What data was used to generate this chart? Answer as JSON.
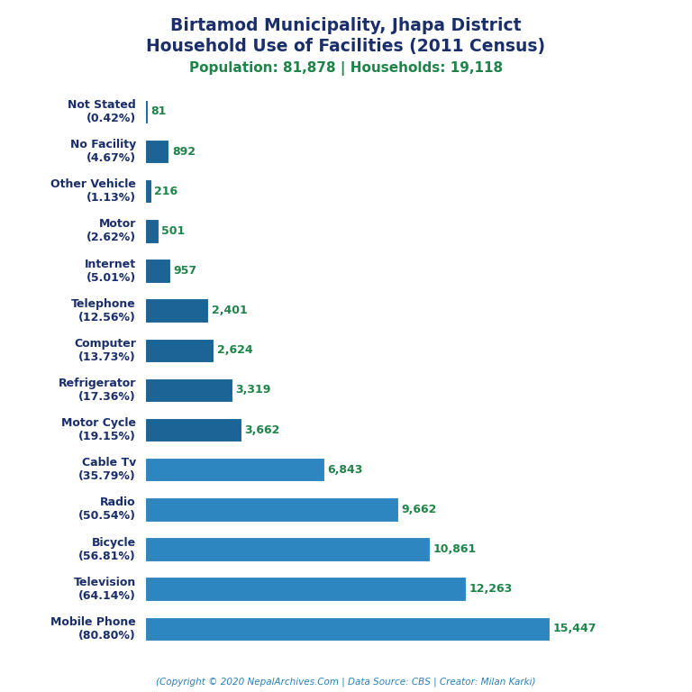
{
  "title_line1": "Birtamod Municipality, Jhapa District",
  "title_line2": "Household Use of Facilities (2011 Census)",
  "subtitle": "Population: 81,878 | Households: 19,118",
  "footer": "(Copyright © 2020 NepalArchives.Com | Data Source: CBS | Creator: Milan Karki)",
  "categories": [
    "Not Stated\n(0.42%)",
    "No Facility\n(4.67%)",
    "Other Vehicle\n(1.13%)",
    "Motor\n(2.62%)",
    "Internet\n(5.01%)",
    "Telephone\n(12.56%)",
    "Computer\n(13.73%)",
    "Refrigerator\n(17.36%)",
    "Motor Cycle\n(19.15%)",
    "Cable Tv\n(35.79%)",
    "Radio\n(50.54%)",
    "Bicycle\n(56.81%)",
    "Television\n(64.14%)",
    "Mobile Phone\n(80.80%)"
  ],
  "values": [
    81,
    892,
    216,
    501,
    957,
    2401,
    2624,
    3319,
    3662,
    6843,
    9662,
    10861,
    12263,
    15447
  ],
  "value_labels": [
    "81",
    "892",
    "216",
    "501",
    "957",
    "2,401",
    "2,624",
    "3,319",
    "3,662",
    "6,843",
    "9,662",
    "10,861",
    "12,263",
    "15,447"
  ],
  "bar_colors": [
    "#1a6496",
    "#1a6496",
    "#1a6496",
    "#1a6496",
    "#1a6496",
    "#1a6496",
    "#1a6496",
    "#1a6496",
    "#1a6496",
    "#2e86c1",
    "#2e86c1",
    "#2e86c1",
    "#2e86c1",
    "#2e86c1"
  ],
  "title_color": "#1a2e6b",
  "subtitle_color": "#1e8449",
  "value_color": "#1e8449",
  "footer_color": "#2980b9",
  "background_color": "#ffffff",
  "figsize": [
    7.68,
    7.68
  ],
  "dpi": 100
}
